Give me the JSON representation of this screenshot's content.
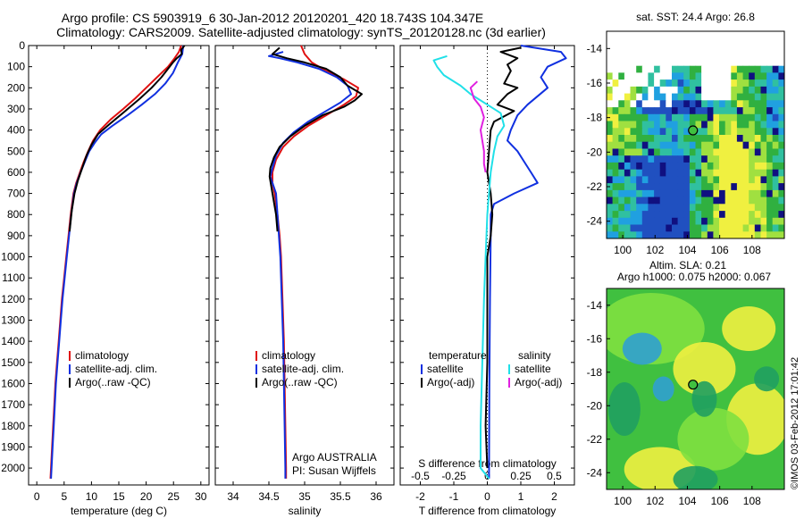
{
  "title": {
    "line1": "Argo profile: CS 5903919_6 30-Jan-2012 20120201_420 18.743S 104.347E",
    "line2": "Climatology: CARS2009. Satellite-adjusted climatology: synTS_20120128.nc (3d earlier)"
  },
  "colors": {
    "climatology": "#e01010",
    "satellite": "#1030e0",
    "argo": "#000000",
    "cyan": "#20e0e8",
    "magenta": "#e020e0"
  },
  "chart_data": [
    {
      "type": "line",
      "id": "temperature",
      "xlabel": "temperature (deg C)",
      "ylabel": "",
      "xlim": [
        -1.5,
        31.5
      ],
      "ylim": [
        2080,
        0
      ],
      "xticks": [
        0,
        5,
        10,
        15,
        20,
        25,
        30
      ],
      "yticks": [
        0,
        100,
        200,
        300,
        400,
        500,
        600,
        700,
        800,
        900,
        1000,
        1100,
        1200,
        1300,
        1400,
        1500,
        1600,
        1700,
        1800,
        1900,
        2000
      ],
      "legend": [
        "climatology",
        "satellite-adj. clim.",
        "Argo(..raw -QC)"
      ],
      "series": [
        {
          "name": "climatology",
          "color": "#e01010",
          "points": [
            [
              26.4,
              0
            ],
            [
              26.0,
              30
            ],
            [
              25.2,
              60
            ],
            [
              24.0,
              100
            ],
            [
              22.0,
              150
            ],
            [
              20.0,
              200
            ],
            [
              18.0,
              250
            ],
            [
              15.8,
              300
            ],
            [
              13.5,
              350
            ],
            [
              11.6,
              400
            ],
            [
              10.3,
              450
            ],
            [
              9.4,
              500
            ],
            [
              8.6,
              550
            ],
            [
              7.9,
              600
            ],
            [
              7.2,
              650
            ],
            [
              6.7,
              700
            ],
            [
              6.2,
              800
            ],
            [
              5.8,
              900
            ],
            [
              5.4,
              1000
            ],
            [
              5.0,
              1100
            ],
            [
              4.6,
              1200
            ],
            [
              4.3,
              1300
            ],
            [
              4.0,
              1400
            ],
            [
              3.7,
              1500
            ],
            [
              3.4,
              1600
            ],
            [
              3.2,
              1700
            ],
            [
              3.0,
              1800
            ],
            [
              2.8,
              1900
            ],
            [
              2.6,
              2000
            ],
            [
              2.5,
              2050
            ]
          ]
        },
        {
          "name": "satellite-adj. clim.",
          "color": "#1030e0",
          "points": [
            [
              26.8,
              0
            ],
            [
              26.6,
              40
            ],
            [
              25.8,
              80
            ],
            [
              24.9,
              130
            ],
            [
              23.5,
              180
            ],
            [
              21.6,
              230
            ],
            [
              19.2,
              280
            ],
            [
              16.6,
              330
            ],
            [
              13.8,
              380
            ],
            [
              11.8,
              420
            ],
            [
              10.6,
              460
            ],
            [
              9.6,
              500
            ],
            [
              8.8,
              550
            ],
            [
              8.0,
              600
            ],
            [
              7.3,
              650
            ],
            [
              6.8,
              700
            ],
            [
              6.3,
              800
            ],
            [
              5.9,
              900
            ],
            [
              5.5,
              1000
            ],
            [
              5.1,
              1100
            ],
            [
              4.7,
              1200
            ],
            [
              4.4,
              1300
            ],
            [
              4.1,
              1400
            ],
            [
              3.8,
              1500
            ],
            [
              3.5,
              1600
            ],
            [
              3.3,
              1700
            ],
            [
              3.1,
              1800
            ],
            [
              2.9,
              1900
            ],
            [
              2.7,
              2000
            ],
            [
              2.6,
              2050
            ]
          ]
        },
        {
          "name": "Argo(..raw -QC)",
          "color": "#000000",
          "points": [
            [
              27.0,
              0
            ],
            [
              26.4,
              20
            ],
            [
              26.5,
              40
            ],
            [
              25.6,
              60
            ],
            [
              24.9,
              80
            ],
            [
              24.0,
              110
            ],
            [
              22.8,
              150
            ],
            [
              21.0,
              200
            ],
            [
              18.9,
              250
            ],
            [
              16.2,
              310
            ],
            [
              13.4,
              370
            ],
            [
              11.2,
              420
            ],
            [
              10.0,
              470
            ],
            [
              9.1,
              520
            ],
            [
              8.3,
              580
            ],
            [
              7.5,
              640
            ],
            [
              6.9,
              700
            ],
            [
              6.4,
              780
            ],
            [
              6.0,
              880
            ]
          ]
        }
      ]
    },
    {
      "type": "line",
      "id": "salinity",
      "xlabel": "salinity",
      "ylabel": "",
      "xlim": [
        33.75,
        36.25
      ],
      "ylim": [
        2080,
        0
      ],
      "xticks": [
        34,
        34.5,
        35,
        35.5,
        36
      ],
      "xticklabels": [
        "34",
        "34.5",
        "35",
        "35.5",
        "36"
      ],
      "legend": [
        "climatology",
        "satellite-adj. clim.",
        "Argo(..raw -QC)"
      ],
      "annotation": [
        "Argo AUSTRALIA",
        "PI: Susan Wijffels"
      ],
      "series": [
        {
          "name": "climatology",
          "color": "#e01010",
          "points": [
            [
              34.95,
              0
            ],
            [
              35.0,
              40
            ],
            [
              35.1,
              80
            ],
            [
              35.3,
              120
            ],
            [
              35.55,
              160
            ],
            [
              35.75,
              200
            ],
            [
              35.72,
              240
            ],
            [
              35.55,
              280
            ],
            [
              35.3,
              330
            ],
            [
              35.05,
              380
            ],
            [
              34.85,
              430
            ],
            [
              34.7,
              480
            ],
            [
              34.6,
              540
            ],
            [
              34.55,
              600
            ],
            [
              34.55,
              650
            ],
            [
              34.58,
              700
            ],
            [
              34.62,
              800
            ],
            [
              34.65,
              900
            ],
            [
              34.67,
              1000
            ],
            [
              34.69,
              1200
            ],
            [
              34.71,
              1400
            ],
            [
              34.72,
              1600
            ],
            [
              34.73,
              1800
            ],
            [
              34.74,
              2000
            ],
            [
              34.74,
              2050
            ]
          ]
        },
        {
          "name": "satellite-adj. clim.",
          "color": "#1030e0",
          "points": [
            [
              34.7,
              30
            ],
            [
              34.5,
              50
            ],
            [
              34.65,
              60
            ],
            [
              34.9,
              80
            ],
            [
              35.2,
              110
            ],
            [
              35.45,
              150
            ],
            [
              35.6,
              190
            ],
            [
              35.65,
              230
            ],
            [
              35.5,
              270
            ],
            [
              35.3,
              310
            ],
            [
              35.05,
              360
            ],
            [
              34.85,
              410
            ],
            [
              34.7,
              460
            ],
            [
              34.6,
              520
            ],
            [
              34.55,
              580
            ],
            [
              34.52,
              620
            ],
            [
              34.55,
              650
            ],
            [
              34.6,
              700
            ],
            [
              34.62,
              800
            ],
            [
              34.64,
              900
            ],
            [
              34.66,
              1000
            ],
            [
              34.68,
              1200
            ],
            [
              34.7,
              1400
            ],
            [
              34.71,
              1600
            ],
            [
              34.72,
              1800
            ],
            [
              34.73,
              2000
            ],
            [
              34.73,
              2050
            ]
          ]
        },
        {
          "name": "Argo(..raw -QC)",
          "color": "#000000",
          "points": [
            [
              34.65,
              10
            ],
            [
              34.55,
              40
            ],
            [
              34.75,
              60
            ],
            [
              35.0,
              80
            ],
            [
              35.3,
              110
            ],
            [
              35.5,
              150
            ],
            [
              35.6,
              190
            ],
            [
              35.8,
              230
            ],
            [
              35.7,
              260
            ],
            [
              35.55,
              290
            ],
            [
              35.25,
              330
            ],
            [
              35.0,
              380
            ],
            [
              34.8,
              430
            ],
            [
              34.65,
              480
            ],
            [
              34.57,
              530
            ],
            [
              34.52,
              580
            ],
            [
              34.51,
              620
            ],
            [
              34.55,
              700
            ],
            [
              34.6,
              800
            ],
            [
              34.62,
              880
            ]
          ]
        }
      ]
    },
    {
      "type": "line",
      "id": "difference",
      "xlabel": "T difference from climatology",
      "xlabel_top": "S difference from climatology",
      "xlim": [
        -2.6,
        2.6
      ],
      "ylim": [
        2080,
        0
      ],
      "xticks": [
        -2,
        -1,
        0,
        1,
        2
      ],
      "xticklabels": [
        "-2",
        "-1",
        "0",
        "1",
        "2"
      ],
      "sticks": [
        -0.5,
        -0.25,
        0,
        0.25,
        0.5
      ],
      "sticklabels": [
        "-0.5",
        "-0.25",
        "0",
        "0.25",
        "0.5"
      ],
      "legend_left_title": "temperature",
      "legend_right_title": "salinity",
      "legend_left": [
        "satellite",
        "Argo(-adj)"
      ],
      "legend_right": [
        "satellite",
        "Argo(-adj)"
      ],
      "series": [
        {
          "name": "T satellite",
          "color": "#1030e0",
          "points": [
            [
              1.0,
              0
            ],
            [
              2.2,
              30
            ],
            [
              2.35,
              60
            ],
            [
              1.8,
              100
            ],
            [
              1.6,
              150
            ],
            [
              1.8,
              200
            ],
            [
              1.2,
              280
            ],
            [
              0.9,
              330
            ],
            [
              0.7,
              400
            ],
            [
              0.6,
              450
            ],
            [
              0.9,
              500
            ],
            [
              1.1,
              550
            ],
            [
              1.3,
              600
            ],
            [
              1.5,
              650
            ],
            [
              0.8,
              700
            ],
            [
              0.2,
              750
            ],
            [
              0.1,
              800
            ],
            [
              0.1,
              900
            ],
            [
              0.08,
              1200
            ],
            [
              0.06,
              1600
            ],
            [
              0.05,
              2050
            ]
          ]
        },
        {
          "name": "T Argo(-adj)",
          "color": "#000000",
          "points": [
            [
              1.0,
              10
            ],
            [
              0.4,
              30
            ],
            [
              0.9,
              60
            ],
            [
              0.6,
              90
            ],
            [
              0.7,
              120
            ],
            [
              0.5,
              180
            ],
            [
              0.9,
              200
            ],
            [
              0.6,
              230
            ],
            [
              0.3,
              280
            ],
            [
              0.8,
              310
            ],
            [
              0.2,
              360
            ],
            [
              0.1,
              400
            ],
            [
              0.05,
              500
            ],
            [
              0.0,
              600
            ],
            [
              0.1,
              700
            ],
            [
              0.15,
              800
            ],
            [
              0.1,
              900
            ],
            [
              0.0,
              1000
            ],
            [
              0.0,
              1500
            ],
            [
              -0.05,
              1800
            ],
            [
              0.0,
              2000
            ]
          ]
        },
        {
          "name": "S satellite",
          "color": "#20e0e8",
          "points": [
            [
              -1.2,
              50
            ],
            [
              -1.6,
              70
            ],
            [
              -1.5,
              100
            ],
            [
              -1.3,
              140
            ],
            [
              -0.8,
              190
            ],
            [
              -0.5,
              230
            ],
            [
              0.0,
              280
            ],
            [
              0.4,
              320
            ],
            [
              0.5,
              380
            ],
            [
              0.3,
              430
            ],
            [
              0.2,
              500
            ],
            [
              0.1,
              600
            ],
            [
              0.0,
              800
            ],
            [
              -0.05,
              1000
            ],
            [
              -0.1,
              1200
            ],
            [
              -0.15,
              1500
            ],
            [
              -0.2,
              1800
            ],
            [
              -0.2,
              2000
            ],
            [
              0.05,
              2050
            ]
          ]
        },
        {
          "name": "S Argo(-adj)",
          "color": "#e020e0",
          "points": [
            [
              -0.3,
              170
            ],
            [
              -0.5,
              200
            ],
            [
              -0.4,
              250
            ],
            [
              -0.2,
              290
            ],
            [
              -0.1,
              340
            ],
            [
              -0.2,
              400
            ],
            [
              -0.1,
              500
            ],
            [
              -0.1,
              560
            ],
            [
              -0.05,
              600
            ]
          ]
        }
      ]
    },
    {
      "type": "heatmap",
      "id": "sst-map",
      "title": "sat. SST: 24.4  Argo: 26.8",
      "xlim": [
        99,
        110
      ],
      "ylim": [
        -25,
        -13
      ],
      "xticks": [
        100,
        102,
        104,
        106,
        108
      ],
      "yticks": [
        -14,
        -16,
        -18,
        -20,
        -22,
        -24
      ],
      "profile_marker": {
        "lon": 104.347,
        "lat": -18.743
      }
    },
    {
      "type": "heatmap",
      "id": "sla-map",
      "title": "Altim. SLA: 0.21",
      "subtitle": "Argo h1000: 0.075  h2000: 0.067",
      "xlim": [
        99,
        110
      ],
      "ylim": [
        -25,
        -13
      ],
      "xticks": [
        100,
        102,
        104,
        106,
        108
      ],
      "yticks": [
        -14,
        -16,
        -18,
        -20,
        -22,
        -24
      ],
      "profile_marker": {
        "lon": 104.347,
        "lat": -18.743
      }
    }
  ],
  "stamp": "©IMOS 03-Feb-2012 17:01:42"
}
